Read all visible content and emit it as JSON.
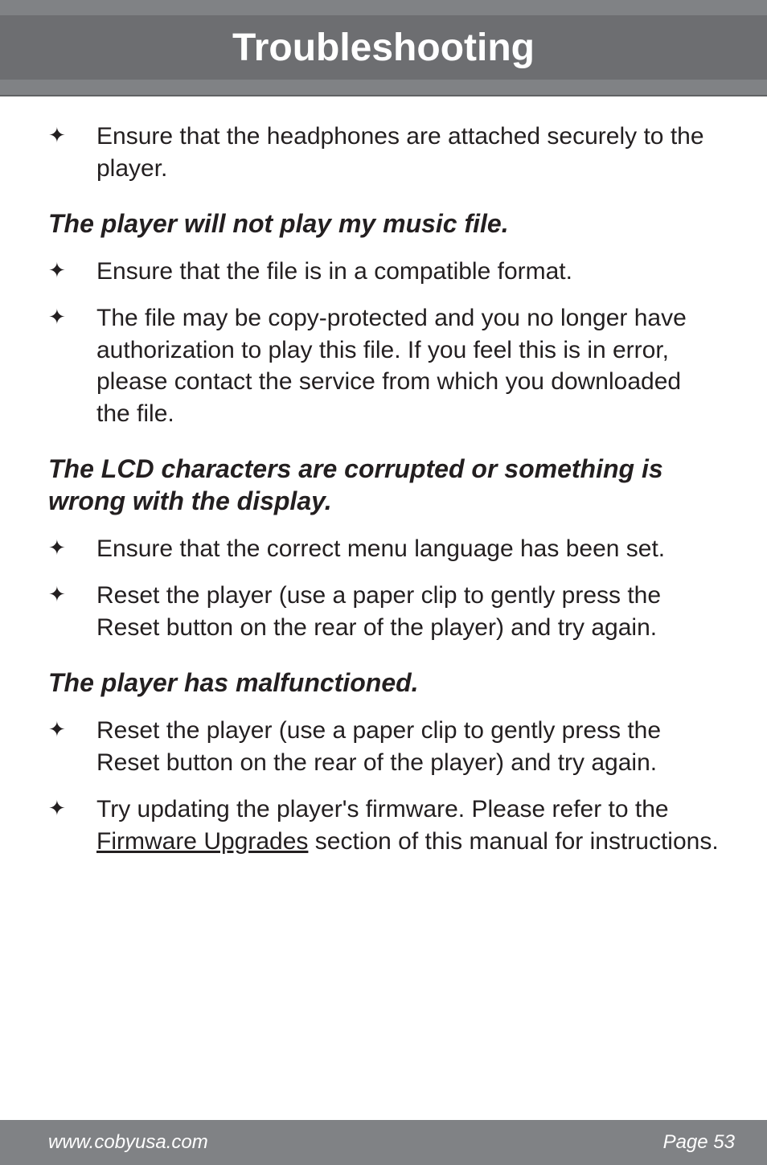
{
  "header": {
    "title": "Troubleshooting"
  },
  "bullets_intro": [
    "Ensure that the headphones are attached securely to the player."
  ],
  "section1": {
    "title": "The player will not play my music file.",
    "bullets": [
      "Ensure that the file is in a compatible format.",
      "The file may be copy-protected and you no longer have authorization to play this file. If you feel this is in error, please contact the service from which you downloaded the file."
    ]
  },
  "section2": {
    "title": "The LCD characters are corrupted or something is wrong with the display.",
    "bullets": [
      "Ensure that the correct menu language has been set.",
      "Reset the player (use a paper clip to gently press the Reset button on the rear of the player) and try again."
    ]
  },
  "section3": {
    "title": "The player has malfunctioned.",
    "bullets": [
      "Reset the player (use a paper clip to gently press the Reset button on the rear of the player) and try again."
    ],
    "bullet_firmware_pre": "Try updating the player's firmware. Please refer to the ",
    "bullet_firmware_link": "Firmware Upgrades",
    "bullet_firmware_post": " section of this manual for instructions."
  },
  "footer": {
    "left": "www.cobyusa.com",
    "right": "Page 53"
  },
  "colors": {
    "header_bg": "#808285",
    "header_inner_bg": "#6d6e71",
    "header_text": "#ffffff",
    "body_text": "#231f20",
    "footer_bg": "#808285",
    "footer_text": "#ffffff",
    "page_bg": "#ffffff"
  },
  "fonts": {
    "title_size_pt": 48,
    "section_title_size_pt": 32,
    "body_size_pt": 30,
    "footer_size_pt": 24
  }
}
